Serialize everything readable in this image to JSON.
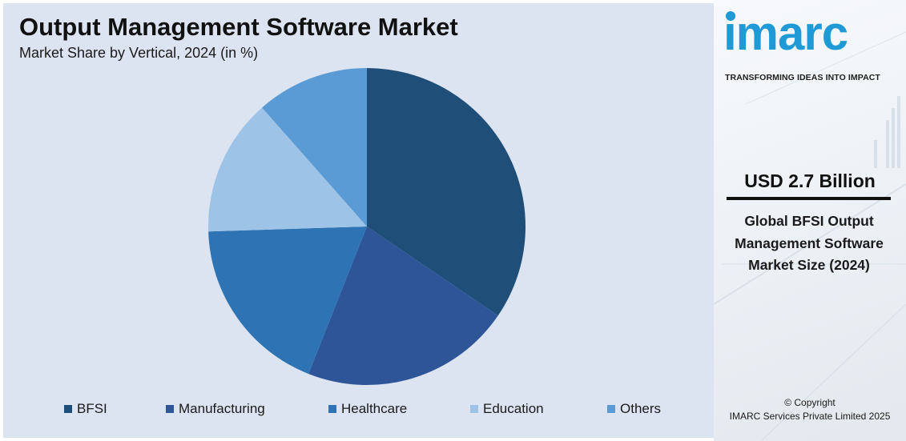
{
  "chart_data": {
    "type": "pie",
    "title": "Output Management Software Market",
    "subtitle": "Market Share by Vertical, 2024 (in %)",
    "categories": [
      "BFSI",
      "Manufacturing",
      "Healthcare",
      "Education",
      "Others"
    ],
    "values": [
      34.5,
      21.5,
      18.5,
      14.0,
      11.5
    ],
    "colors": [
      "#1f4e79",
      "#2e5597",
      "#2e74b5",
      "#9dc3e6",
      "#5b9bd5"
    ],
    "legend_position": "bottom"
  },
  "brand": {
    "logo_text": "ımarc",
    "tagline": "TRANSFORMING IDEAS INTO IMPACT",
    "accent_color": "#1f9ad6"
  },
  "highlight": {
    "value": "USD 2.7 Billion",
    "label": "Global BFSI Output Management Software Market Size (2024)"
  },
  "footer": {
    "copyright_line1": "© Copyright",
    "copyright_line2": "IMARC Services Private Limited 2025"
  }
}
